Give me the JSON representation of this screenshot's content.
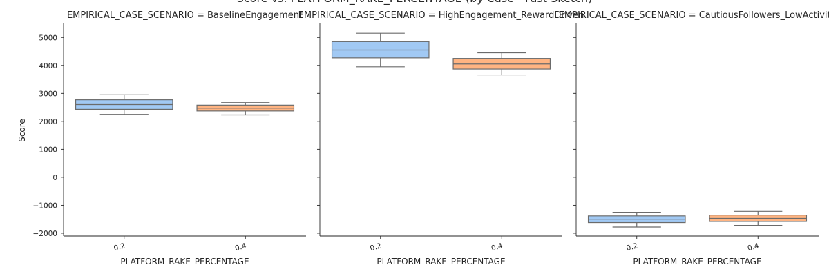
{
  "chart_data": {
    "type": "box",
    "title": "Score vs. PLATFORM_RAKE_PERCENTAGE (by Case - Fast Sketch)",
    "ylabel": "Score",
    "xlabel": "PLATFORM_RAKE_PERCENTAGE",
    "ylim": [
      -2100,
      5500
    ],
    "yticks": [
      -2000,
      -1000,
      0,
      1000,
      2000,
      3000,
      4000,
      5000
    ],
    "ytick_labels": [
      "−2000",
      "−1000",
      "0",
      "1000",
      "2000",
      "3000",
      "4000",
      "5000"
    ],
    "categories": [
      "0.2",
      "0.4"
    ],
    "colors": {
      "0.2": "#a1c9f4",
      "0.4": "#ffb482"
    },
    "panels": [
      {
        "title": "EMPIRICAL_CASE_SCENARIO = BaselineEngagement",
        "boxes": [
          {
            "category": "0.2",
            "whisker_low": 2250,
            "q1": 2430,
            "median": 2600,
            "q3": 2770,
            "whisker_high": 2950
          },
          {
            "category": "0.4",
            "whisker_low": 2230,
            "q1": 2370,
            "median": 2470,
            "q3": 2580,
            "whisker_high": 2670
          }
        ]
      },
      {
        "title": "EMPIRICAL_CASE_SCENARIO = HighEngagement_RewardDriven",
        "boxes": [
          {
            "category": "0.2",
            "whisker_low": 3950,
            "q1": 4270,
            "median": 4550,
            "q3": 4850,
            "whisker_high": 5150
          },
          {
            "category": "0.4",
            "whisker_low": 3660,
            "q1": 3870,
            "median": 4050,
            "q3": 4250,
            "whisker_high": 4450
          }
        ]
      },
      {
        "title": "EMPIRICAL_CASE_SCENARIO = CautiousFollowers_LowActivity",
        "boxes": [
          {
            "category": "0.2",
            "whisker_low": -1780,
            "q1": -1620,
            "median": -1500,
            "q3": -1380,
            "whisker_high": -1250
          },
          {
            "category": "0.4",
            "whisker_low": -1720,
            "q1": -1580,
            "median": -1470,
            "q3": -1350,
            "whisker_high": -1220
          }
        ]
      }
    ]
  }
}
